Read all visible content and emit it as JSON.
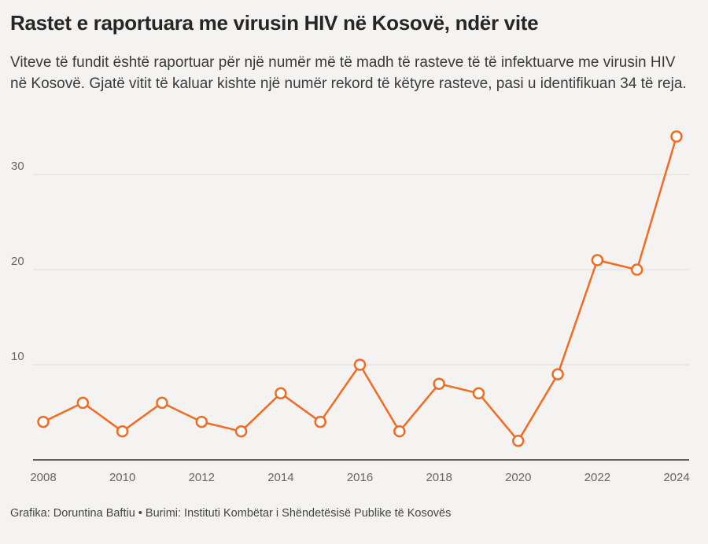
{
  "title": "Rastet e raportuara me virusin HIV në Kosovë, ndër vite",
  "subtitle": "Viteve të fundit është raportuar për një numër më të madh të rasteve të të infektuarve me virusin HIV në Kosovë. Gjatë vitit të kaluar kishte një numër rekord të këtyre rasteve, pasi u identifikuan 34 të reja.",
  "footer": "Grafika: Doruntina Baftiu • Burimi: Instituti Kombëtar i Shëndetësisë Publike të Kosovës",
  "colors": {
    "line": "#f26b21",
    "marker_fill": "#ffffff",
    "grid": "#dedcd8",
    "axis": "#333333",
    "background": "#f4f3f1"
  },
  "chart_data": {
    "type": "line",
    "x": [
      2008,
      2009,
      2010,
      2011,
      2012,
      2013,
      2014,
      2015,
      2016,
      2017,
      2018,
      2019,
      2020,
      2021,
      2022,
      2023,
      2024
    ],
    "series": [
      {
        "values": [
          4,
          6,
          3,
          6,
          4,
          3,
          7,
          4,
          10,
          3,
          8,
          7,
          2,
          9,
          21,
          20,
          34
        ]
      }
    ],
    "x_ticks": [
      "2008",
      "2010",
      "2012",
      "2014",
      "2016",
      "2018",
      "2020",
      "2022",
      "2024"
    ],
    "y_ticks": [
      "10",
      "20",
      "30"
    ],
    "xlim": [
      2008,
      2024
    ],
    "ylim": [
      0,
      34
    ],
    "grid": true,
    "xlabel": "",
    "ylabel": ""
  }
}
